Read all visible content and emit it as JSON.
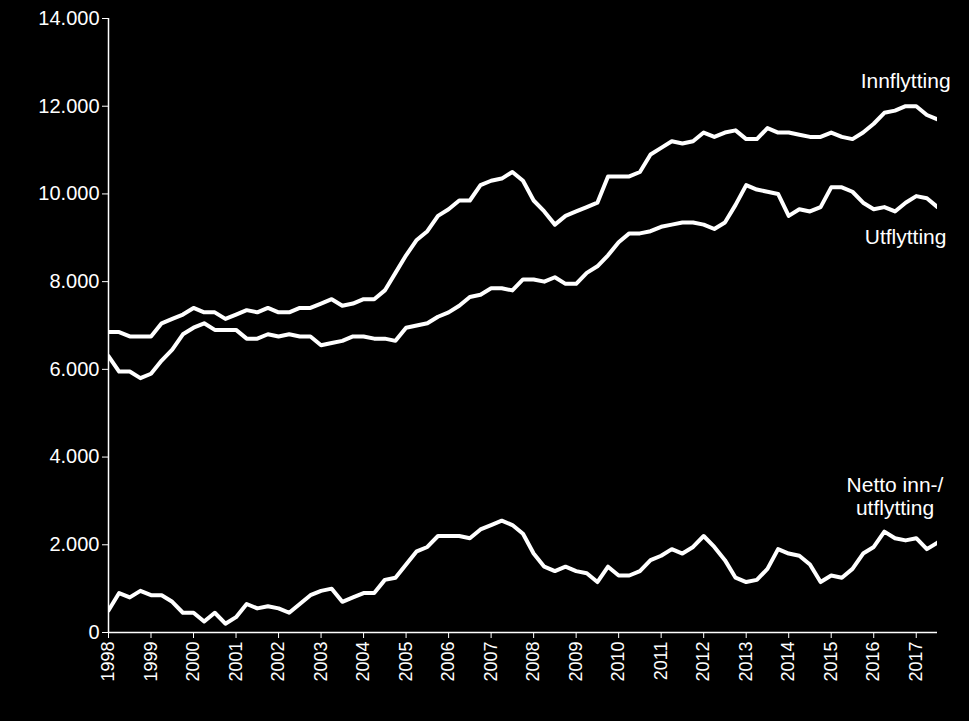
{
  "chart_data": {
    "type": "line",
    "categories": [
      "1998",
      null,
      null,
      null,
      "1999",
      null,
      null,
      null,
      "2000",
      null,
      null,
      null,
      "2001",
      null,
      null,
      null,
      "2002",
      null,
      null,
      null,
      "2003",
      null,
      null,
      null,
      "2004",
      null,
      null,
      null,
      "2005",
      null,
      null,
      null,
      "2006",
      null,
      null,
      null,
      "2007",
      null,
      null,
      null,
      "2008",
      null,
      null,
      null,
      "2009",
      null,
      null,
      null,
      "2010",
      null,
      null,
      null,
      "2011",
      null,
      null,
      null,
      "2012",
      null,
      null,
      null,
      "2013",
      null,
      null,
      null,
      "2014",
      null,
      null,
      null,
      "2015",
      null,
      null,
      null,
      "2016",
      null,
      null,
      null,
      "2017",
      null,
      null
    ],
    "series": [
      {
        "name": "Innflytting",
        "color": "#ffffff",
        "values": [
          6850,
          6850,
          6750,
          6750,
          6750,
          7050,
          7150,
          7250,
          7400,
          7300,
          7300,
          7150,
          7250,
          7350,
          7300,
          7400,
          7300,
          7300,
          7400,
          7400,
          7500,
          7600,
          7450,
          7500,
          7600,
          7600,
          7800,
          8200,
          8600,
          8950,
          9150,
          9500,
          9650,
          9850,
          9850,
          10200,
          10300,
          10350,
          10500,
          10300,
          9850,
          9600,
          9300,
          9500,
          9600,
          9700,
          9800,
          10400,
          10400,
          10400,
          10500,
          10900,
          11050,
          11200,
          11150,
          11200,
          11400,
          11300,
          11400,
          11450,
          11250,
          11250,
          11500,
          11400,
          11400,
          11350,
          11300,
          11300,
          11400,
          11300,
          11250,
          11400,
          11600,
          11850,
          11900,
          12000,
          12000,
          11800,
          11700
        ]
      },
      {
        "name": "Utflytting",
        "color": "#ffffff",
        "values": [
          6300,
          5950,
          5950,
          5800,
          5900,
          6200,
          6450,
          6800,
          6950,
          7050,
          6900,
          6900,
          6900,
          6700,
          6700,
          6800,
          6750,
          6800,
          6750,
          6750,
          6550,
          6600,
          6650,
          6750,
          6750,
          6700,
          6700,
          6650,
          6950,
          7000,
          7050,
          7200,
          7300,
          7450,
          7650,
          7700,
          7850,
          7850,
          7800,
          8050,
          8050,
          8000,
          8100,
          7950,
          7950,
          8200,
          8350,
          8600,
          8900,
          9100,
          9100,
          9150,
          9250,
          9300,
          9350,
          9350,
          9300,
          9200,
          9350,
          9750,
          10200,
          10100,
          10050,
          10000,
          9500,
          9650,
          9600,
          9700,
          10150,
          10150,
          10050,
          9800,
          9650,
          9700,
          9600,
          9800,
          9950,
          9900,
          9700
        ]
      },
      {
        "name": "Netto inn-/\nutflytting",
        "color": "#ffffff",
        "values": [
          500,
          900,
          800,
          950,
          850,
          850,
          700,
          450,
          450,
          250,
          450,
          200,
          350,
          650,
          550,
          600,
          550,
          450,
          650,
          850,
          950,
          1000,
          700,
          800,
          900,
          900,
          1200,
          1250,
          1550,
          1850,
          1950,
          2200,
          2200,
          2200,
          2150,
          2350,
          2450,
          2550,
          2450,
          2250,
          1800,
          1500,
          1400,
          1500,
          1400,
          1350,
          1150,
          1500,
          1300,
          1300,
          1400,
          1650,
          1750,
          1900,
          1800,
          1950,
          2200,
          1950,
          1650,
          1250,
          1150,
          1200,
          1450,
          1900,
          1800,
          1750,
          1550,
          1150,
          1300,
          1250,
          1450,
          1800,
          1950,
          2300,
          2150,
          2100,
          2150,
          1900,
          2050
        ]
      }
    ],
    "ylim": [
      0,
      14000
    ],
    "yticks": [
      0,
      {
        "value": 2000,
        "label": "2.000"
      },
      {
        "value": 4000,
        "label": "4.000"
      },
      {
        "value": 6000,
        "label": "6.000"
      },
      {
        "value": 8000,
        "label": "8.000"
      },
      {
        "value": 10000,
        "label": "10.000"
      },
      {
        "value": 12000,
        "label": "12.000"
      },
      {
        "value": 14000,
        "label": "14.000"
      }
    ],
    "grid": false
  }
}
